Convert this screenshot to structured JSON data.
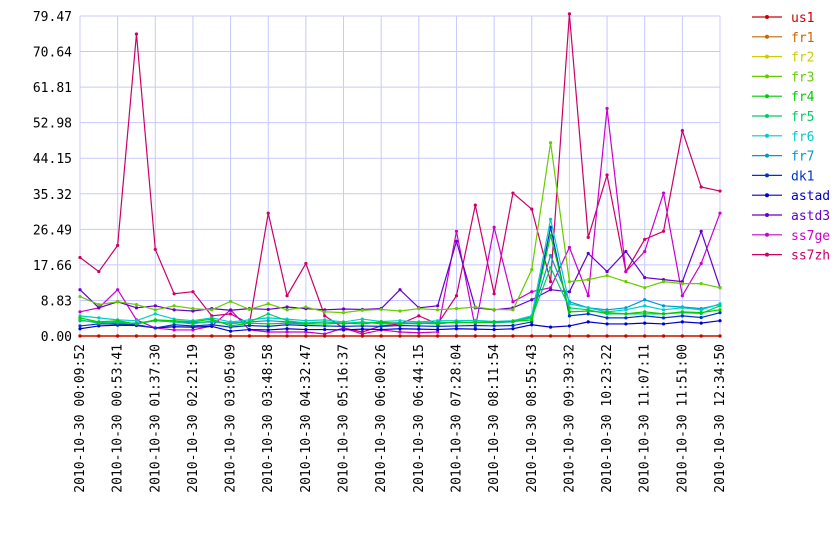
{
  "chart_data": {
    "type": "line",
    "title": "",
    "xlabel": "",
    "ylabel": "",
    "ylim": [
      0,
      79.47
    ],
    "yticks": [
      0.0,
      8.83,
      17.66,
      26.49,
      35.32,
      44.15,
      52.98,
      61.81,
      70.64,
      79.47
    ],
    "ytick_labels": [
      "0.00",
      "8.83",
      "17.66",
      "26.49",
      "35.32",
      "44.15",
      "52.98",
      "61.81",
      "70.64",
      "79.47"
    ],
    "x": [
      "2010-10-30 00:09:52",
      "2010-10-30 00:31:47",
      "2010-10-30 00:53:41",
      "2010-10-30 01:15:35",
      "2010-10-30 01:37:30",
      "2010-10-30 01:59:24",
      "2010-10-30 02:21:19",
      "2010-10-30 02:43:13",
      "2010-10-30 03:05:09",
      "2010-10-30 03:27:04",
      "2010-10-30 03:48:58",
      "2010-10-30 04:10:52",
      "2010-10-30 04:32:47",
      "2010-10-30 04:54:42",
      "2010-10-30 05:16:37",
      "2010-10-30 05:38:31",
      "2010-10-30 06:00:26",
      "2010-10-30 06:22:20",
      "2010-10-30 06:44:15",
      "2010-10-30 07:06:10",
      "2010-10-30 07:28:04",
      "2010-10-30 07:49:59",
      "2010-10-30 08:11:54",
      "2010-10-30 08:33:48",
      "2010-10-30 08:55:43",
      "2010-10-30 09:17:37",
      "2010-10-30 09:39:32",
      "2010-10-30 10:01:27",
      "2010-10-30 10:23:22",
      "2010-10-30 10:45:16",
      "2010-10-30 11:07:11",
      "2010-10-30 11:29:05",
      "2010-10-30 11:51:00",
      "2010-10-30 12:12:55",
      "2010-10-30 12:34:50"
    ],
    "xtick_labels": [
      "2010-10-30 00:09:52",
      "2010-10-30 00:53:41",
      "2010-10-30 01:37:30",
      "2010-10-30 02:21:19",
      "2010-10-30 03:05:09",
      "2010-10-30 03:48:58",
      "2010-10-30 04:32:47",
      "2010-10-30 05:16:37",
      "2010-10-30 06:00:26",
      "2010-10-30 06:44:15",
      "2010-10-30 07:28:04",
      "2010-10-30 08:11:54",
      "2010-10-30 08:55:43",
      "2010-10-30 09:39:32",
      "2010-10-30 10:23:22",
      "2010-10-30 11:07:11",
      "2010-10-30 11:51:00",
      "2010-10-30 12:34:50"
    ],
    "grid": true,
    "legend_position": "right",
    "series": [
      {
        "name": "us1",
        "color": "#cc0000",
        "values": [
          0,
          0,
          0,
          0,
          0,
          0,
          0,
          0,
          0,
          0,
          0,
          0,
          0,
          0,
          0,
          0,
          0,
          0,
          0,
          0,
          0,
          0,
          0,
          0,
          0,
          0,
          0,
          0,
          0,
          0,
          0,
          0,
          0,
          0,
          0
        ]
      },
      {
        "name": "fr1",
        "color": "#cc6600",
        "values": [
          0,
          0,
          0,
          0,
          0,
          0,
          0,
          0,
          0,
          0,
          0,
          0,
          0,
          0,
          0,
          0,
          0,
          0,
          0,
          0,
          0,
          0,
          0,
          0,
          0,
          0,
          0,
          0,
          0,
          0,
          0,
          0,
          0,
          0,
          0
        ]
      },
      {
        "name": "fr2",
        "color": "#cccc00",
        "values": [
          0,
          0,
          0,
          0,
          0,
          0,
          0,
          0,
          0,
          0,
          0,
          0,
          0,
          0,
          0,
          0,
          0,
          0,
          0,
          0,
          0,
          0,
          0,
          0,
          0,
          0,
          0,
          0,
          0,
          0,
          0,
          0,
          0,
          0,
          0
        ]
      },
      {
        "name": "fr3",
        "color": "#66cc00",
        "values": [
          9.8,
          7.8,
          8.5,
          7.8,
          6.5,
          7.5,
          6.8,
          6.5,
          8.6,
          6.6,
          8.0,
          6.5,
          7.2,
          6.0,
          5.8,
          6.4,
          6.6,
          6.2,
          6.8,
          6.5,
          6.8,
          7.2,
          6.6,
          6.5,
          16.5,
          48.0,
          13.5,
          14.0,
          15.0,
          13.5,
          12.0,
          13.5,
          13.0,
          13.0,
          12.0
        ]
      },
      {
        "name": "fr4",
        "color": "#00cc00",
        "values": [
          4.5,
          3.5,
          3.8,
          3.0,
          4.0,
          3.8,
          3.5,
          4.2,
          2.5,
          3.2,
          3.0,
          3.2,
          3.0,
          3.0,
          3.2,
          3.0,
          3.5,
          3.0,
          3.2,
          3.0,
          3.5,
          3.3,
          3.5,
          3.6,
          4.0,
          25.0,
          6.0,
          6.2,
          5.8,
          5.5,
          6.0,
          5.5,
          6.0,
          5.8,
          6.5
        ]
      },
      {
        "name": "fr5",
        "color": "#00cc66",
        "values": [
          4.0,
          3.2,
          3.5,
          3.0,
          3.8,
          3.5,
          3.0,
          3.8,
          3.0,
          3.5,
          5.5,
          3.8,
          3.2,
          3.5,
          3.0,
          3.5,
          3.0,
          3.2,
          3.0,
          3.4,
          3.3,
          3.5,
          3.4,
          3.6,
          4.5,
          17.0,
          7.0,
          6.5,
          5.5,
          5.5,
          5.5,
          5.5,
          5.8,
          5.6,
          7.5
        ]
      },
      {
        "name": "fr6",
        "color": "#00cccc",
        "values": [
          5.0,
          4.5,
          4.0,
          3.8,
          5.5,
          4.2,
          3.8,
          4.5,
          3.5,
          4.0,
          4.5,
          4.2,
          3.8,
          4.0,
          3.5,
          4.2,
          3.6,
          3.8,
          3.5,
          3.8,
          3.8,
          3.9,
          3.6,
          3.8,
          5.0,
          29.0,
          8.0,
          7.0,
          6.0,
          6.5,
          7.5,
          6.5,
          7.0,
          6.5,
          8.0
        ]
      },
      {
        "name": "fr7",
        "color": "#0099cc",
        "values": [
          3.8,
          3.5,
          3.2,
          3.2,
          3.8,
          3.5,
          3.3,
          3.5,
          3.2,
          3.5,
          3.8,
          3.5,
          3.2,
          3.5,
          3.2,
          3.4,
          3.2,
          3.3,
          3.2,
          3.4,
          3.3,
          3.4,
          3.3,
          3.5,
          4.8,
          20.0,
          8.5,
          7.0,
          6.5,
          7.0,
          9.0,
          7.5,
          7.2,
          6.8,
          7.8
        ]
      },
      {
        "name": "dk1",
        "color": "#0033cc",
        "values": [
          2.5,
          3.0,
          3.0,
          2.8,
          2.0,
          2.8,
          2.5,
          2.8,
          2.2,
          2.6,
          2.4,
          2.8,
          2.6,
          2.5,
          2.4,
          2.5,
          2.4,
          2.6,
          2.5,
          2.4,
          2.5,
          2.6,
          2.5,
          2.6,
          3.5,
          27.0,
          5.0,
          5.5,
          4.5,
          4.5,
          5.0,
          4.5,
          5.0,
          4.6,
          5.8
        ]
      },
      {
        "name": "astad",
        "color": "#0000cc",
        "values": [
          1.8,
          2.5,
          2.7,
          2.6,
          2.0,
          2.3,
          2.2,
          2.4,
          1.2,
          1.6,
          1.5,
          1.8,
          1.6,
          1.6,
          1.5,
          1.7,
          1.6,
          1.8,
          1.7,
          1.6,
          1.8,
          1.7,
          1.6,
          1.8,
          2.8,
          2.2,
          2.5,
          3.5,
          3.0,
          3.0,
          3.2,
          3.0,
          3.5,
          3.2,
          3.8
        ]
      },
      {
        "name": "astd3",
        "color": "#6600cc",
        "values": [
          11.5,
          7.0,
          8.5,
          7.0,
          7.5,
          6.5,
          6.2,
          6.8,
          6.4,
          6.8,
          6.6,
          7.2,
          6.8,
          6.5,
          6.7,
          6.6,
          6.8,
          11.5,
          7.0,
          7.5,
          23.5,
          7.0,
          6.5,
          7.0,
          9.0,
          11.5,
          11.0,
          20.5,
          16.0,
          21.0,
          14.5,
          14.0,
          13.5,
          26.0,
          12.0
        ]
      },
      {
        "name": "ss7ge",
        "color": "#cc00cc",
        "values": [
          6.0,
          7.0,
          11.5,
          4.0,
          2.0,
          1.5,
          1.5,
          2.5,
          6.5,
          1.5,
          1.0,
          1.0,
          1.0,
          0.5,
          2.0,
          0.5,
          1.5,
          1.0,
          0.8,
          1.0,
          26.0,
          2.0,
          27.0,
          8.5,
          11.0,
          12.0,
          22.0,
          10.0,
          56.5,
          16.0,
          21.0,
          35.5,
          10.0,
          18.0,
          30.5
        ]
      },
      {
        "name": "ss7zh",
        "color": "#cc0066",
        "values": [
          19.5,
          16.0,
          22.5,
          75.0,
          21.5,
          10.5,
          11.0,
          5.0,
          5.5,
          3.0,
          30.5,
          10.0,
          18.0,
          5.0,
          2.0,
          1.0,
          2.5,
          3.0,
          5.0,
          3.0,
          10.0,
          32.5,
          10.5,
          35.5,
          31.5,
          13.5,
          80.0,
          24.5,
          40.0,
          16.0,
          24.0,
          26.0,
          51.0,
          37.0,
          36.0
        ]
      }
    ]
  }
}
